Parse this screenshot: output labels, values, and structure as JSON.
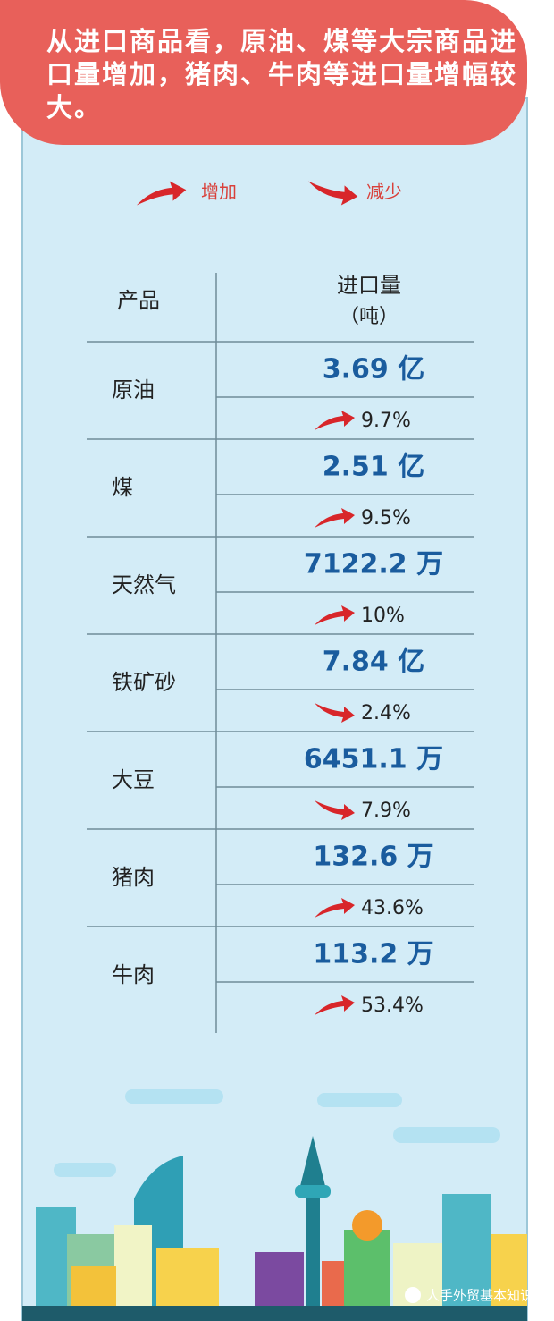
{
  "header": {
    "title": "从进口商品看，原油、煤等大宗商品进口量增加，猪肉、牛肉等进口量增幅较大。"
  },
  "legend": {
    "increase": "增加",
    "decrease": "减少"
  },
  "table": {
    "columns": {
      "product": "产品",
      "volume": "进口量",
      "unit": "（吨）"
    },
    "rows": [
      {
        "product": "原油",
        "volume": "3.69 亿",
        "change": "9.7%",
        "trend": "up"
      },
      {
        "product": "煤",
        "volume": "2.51 亿",
        "change": "9.5%",
        "trend": "up"
      },
      {
        "product": "天然气",
        "volume": "7122.2 万",
        "change": "10%",
        "trend": "up"
      },
      {
        "product": "铁矿砂",
        "volume": "7.84 亿",
        "change": "2.4%",
        "trend": "down"
      },
      {
        "product": "大豆",
        "volume": "6451.1 万",
        "change": "7.9%",
        "trend": "down"
      },
      {
        "product": "猪肉",
        "volume": "132.6 万",
        "change": "43.6%",
        "trend": "up"
      },
      {
        "product": "牛肉",
        "volume": "113.2 万",
        "change": "53.4%",
        "trend": "up"
      }
    ]
  },
  "watermark": "人手外贸基本知识"
}
